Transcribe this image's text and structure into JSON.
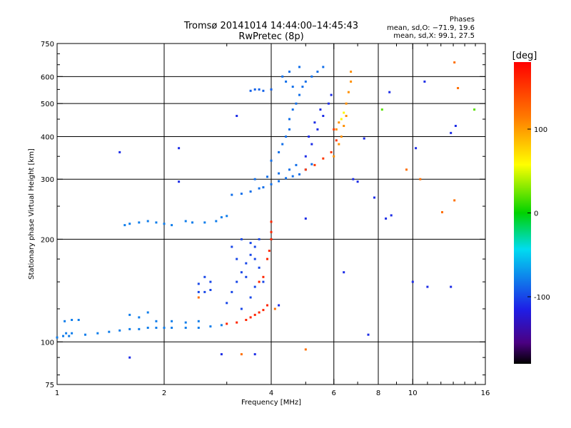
{
  "chart_data": {
    "type": "scatter",
    "title": "Tromsø 20141014 14:44:00–14:45:43",
    "subtitle": "RwPretec (8p)",
    "stats": {
      "header": "Phases",
      "line_o": "mean, sd,O: −71.9, 19.6",
      "line_x": "mean, sd,X:  99.1, 27.5"
    },
    "xlabel": "Frequency [MHz]",
    "ylabel": "Stationary phase Virtual Height [km]",
    "x_scale": "log",
    "y_scale": "log",
    "xlim": [
      1,
      16
    ],
    "ylim": [
      75,
      750
    ],
    "x_ticks": [
      1,
      2,
      4,
      6,
      8,
      10,
      16
    ],
    "x_tick_labels": [
      "1",
      "2",
      "4",
      "6",
      "8",
      "10",
      "16"
    ],
    "x_minor_ticks": [
      3,
      5,
      7,
      9,
      11,
      12,
      13,
      14,
      15
    ],
    "y_ticks": [
      75,
      100,
      200,
      300,
      400,
      500,
      600,
      750
    ],
    "y_tick_labels": [
      "75",
      "100",
      "200",
      "300",
      "400",
      "500",
      "600",
      "750"
    ],
    "y_minor_ticks": [
      80,
      90,
      125,
      150,
      175,
      250,
      350,
      450,
      550,
      650,
      700
    ],
    "x_gridlines": [
      2,
      4,
      6,
      8,
      10
    ],
    "y_gridlines": [
      100,
      200,
      300,
      400,
      500,
      600
    ],
    "grid": true,
    "colorbar": {
      "label": "[deg]",
      "range": [
        -180,
        180
      ],
      "ticks": [
        100,
        0,
        -100
      ],
      "tick_labels": [
        "100",
        "0",
        "-100"
      ],
      "position": "right"
    },
    "colors": {
      "background": "#ffffff",
      "grid": "#000000",
      "cyan": "#1eb4e6",
      "blue": "#1e46dc",
      "darkblue": "#1414a0",
      "orange": "#ff6a00",
      "yellow": "#d2dc14",
      "green": "#3cc83c"
    },
    "series": [
      {
        "phase": -80,
        "points": [
          [
            1.0,
            103
          ],
          [
            1.04,
            104
          ],
          [
            1.06,
            106
          ],
          [
            1.08,
            104
          ],
          [
            1.1,
            106
          ],
          [
            1.05,
            115
          ],
          [
            1.1,
            116
          ],
          [
            1.15,
            116
          ],
          [
            1.2,
            105
          ],
          [
            1.3,
            106
          ],
          [
            1.4,
            107
          ],
          [
            1.5,
            108
          ],
          [
            1.6,
            109
          ],
          [
            1.7,
            109
          ],
          [
            1.8,
            110
          ],
          [
            1.9,
            110
          ],
          [
            2.0,
            110
          ],
          [
            2.1,
            110
          ],
          [
            2.3,
            110
          ],
          [
            2.5,
            110
          ],
          [
            2.7,
            111
          ],
          [
            2.9,
            112
          ],
          [
            1.6,
            120
          ],
          [
            1.7,
            118
          ],
          [
            1.8,
            122
          ],
          [
            1.9,
            115
          ],
          [
            2.1,
            115
          ],
          [
            2.3,
            114
          ],
          [
            2.5,
            115
          ]
        ]
      },
      {
        "phase": -80,
        "points": [
          [
            1.55,
            220
          ],
          [
            1.6,
            222
          ],
          [
            1.7,
            224
          ],
          [
            1.8,
            226
          ],
          [
            1.9,
            224
          ],
          [
            2.0,
            222
          ],
          [
            2.1,
            220
          ],
          [
            2.3,
            226
          ],
          [
            2.4,
            224
          ],
          [
            2.6,
            224
          ],
          [
            2.8,
            226
          ],
          [
            2.9,
            232
          ],
          [
            3.0,
            234
          ]
        ]
      },
      {
        "phase": -85,
        "points": [
          [
            3.1,
            270
          ],
          [
            3.3,
            272
          ],
          [
            3.5,
            276
          ],
          [
            3.7,
            282
          ],
          [
            3.8,
            284
          ],
          [
            4.0,
            290
          ],
          [
            4.2,
            296
          ],
          [
            4.4,
            302
          ],
          [
            4.6,
            306
          ],
          [
            4.8,
            310
          ],
          [
            5.0,
            320
          ],
          [
            5.2,
            332
          ],
          [
            3.6,
            300
          ],
          [
            3.9,
            305
          ],
          [
            4.2,
            312
          ],
          [
            4.5,
            320
          ],
          [
            4.7,
            330
          ]
        ]
      },
      {
        "phase": -85,
        "points": [
          [
            4.0,
            340
          ],
          [
            4.2,
            360
          ],
          [
            4.3,
            380
          ],
          [
            4.4,
            400
          ],
          [
            4.5,
            420
          ],
          [
            4.5,
            450
          ],
          [
            4.6,
            480
          ],
          [
            4.7,
            500
          ],
          [
            4.8,
            530
          ],
          [
            4.9,
            560
          ],
          [
            5.0,
            580
          ],
          [
            5.2,
            600
          ],
          [
            5.4,
            620
          ],
          [
            5.6,
            640
          ],
          [
            4.6,
            560
          ],
          [
            4.4,
            580
          ],
          [
            4.3,
            600
          ],
          [
            4.5,
            620
          ],
          [
            4.8,
            640
          ]
        ]
      },
      {
        "phase": -90,
        "points": [
          [
            3.5,
            545
          ],
          [
            3.6,
            550
          ],
          [
            3.7,
            550
          ],
          [
            3.8,
            545
          ],
          [
            4.0,
            550
          ]
        ]
      },
      {
        "phase": -100,
        "points": [
          [
            3.0,
            130
          ],
          [
            3.1,
            140
          ],
          [
            3.2,
            150
          ],
          [
            3.3,
            160
          ],
          [
            3.4,
            170
          ],
          [
            3.5,
            180
          ],
          [
            3.6,
            190
          ],
          [
            3.7,
            200
          ],
          [
            3.3,
            200
          ],
          [
            3.5,
            195
          ],
          [
            3.2,
            175
          ],
          [
            3.4,
            155
          ],
          [
            3.6,
            145
          ],
          [
            3.8,
            150
          ],
          [
            3.5,
            135
          ],
          [
            3.3,
            125
          ],
          [
            3.7,
            165
          ],
          [
            3.1,
            190
          ],
          [
            3.6,
            175
          ]
        ]
      },
      {
        "phase": -100,
        "points": [
          [
            2.5,
            140
          ],
          [
            2.6,
            140
          ],
          [
            2.7,
            142
          ],
          [
            2.6,
            155
          ],
          [
            2.7,
            150
          ],
          [
            2.5,
            148
          ]
        ]
      },
      {
        "phase": -110,
        "points": [
          [
            5.0,
            350
          ],
          [
            5.2,
            380
          ],
          [
            5.4,
            420
          ],
          [
            5.6,
            460
          ],
          [
            5.8,
            500
          ],
          [
            5.9,
            530
          ],
          [
            5.1,
            400
          ],
          [
            5.3,
            440
          ],
          [
            5.5,
            480
          ]
        ]
      },
      {
        "phase": 160,
        "points": [
          [
            3.0,
            113
          ],
          [
            3.2,
            114
          ],
          [
            3.4,
            116
          ],
          [
            3.5,
            118
          ],
          [
            3.6,
            120
          ],
          [
            3.7,
            122
          ],
          [
            3.8,
            124
          ],
          [
            3.9,
            128
          ],
          [
            3.7,
            150
          ],
          [
            3.8,
            155
          ],
          [
            3.9,
            175
          ],
          [
            3.95,
            185
          ],
          [
            4.0,
            200
          ],
          [
            4.0,
            210
          ],
          [
            4.0,
            225
          ]
        ]
      },
      {
        "phase": 150,
        "points": [
          [
            5.0,
            320
          ],
          [
            5.3,
            330
          ],
          [
            5.6,
            345
          ],
          [
            5.9,
            360
          ],
          [
            6.1,
            390
          ],
          [
            6.0,
            420
          ]
        ]
      },
      {
        "phase": 105,
        "points": [
          [
            6.0,
            350
          ],
          [
            6.2,
            380
          ],
          [
            6.3,
            400
          ],
          [
            6.4,
            430
          ],
          [
            6.5,
            460
          ],
          [
            6.5,
            500
          ],
          [
            6.6,
            540
          ],
          [
            6.7,
            580
          ],
          [
            6.7,
            620
          ],
          [
            6.1,
            420
          ],
          [
            6.2,
            440
          ]
        ]
      },
      {
        "phase": 60,
        "points": [
          [
            6.3,
            450
          ],
          [
            6.4,
            470
          ]
        ]
      },
      {
        "phase": -110,
        "points": [
          [
            1.5,
            360
          ],
          [
            2.2,
            370
          ],
          [
            2.2,
            295
          ],
          [
            3.2,
            460
          ],
          [
            1.6,
            90
          ],
          [
            2.9,
            92
          ],
          [
            3.6,
            92
          ],
          [
            7.3,
            395
          ],
          [
            8.6,
            540
          ],
          [
            10.8,
            580
          ],
          [
            10.2,
            370
          ],
          [
            12.8,
            410
          ],
          [
            13.2,
            430
          ],
          [
            6.8,
            300
          ],
          [
            7.0,
            295
          ],
          [
            7.8,
            265
          ],
          [
            8.4,
            230
          ],
          [
            10.0,
            150
          ],
          [
            11.0,
            145
          ],
          [
            12.8,
            145
          ],
          [
            6.4,
            160
          ],
          [
            4.2,
            128
          ],
          [
            5.0,
            230
          ],
          [
            7.5,
            105
          ],
          [
            8.7,
            235
          ]
        ]
      },
      {
        "phase": 120,
        "points": [
          [
            4.1,
            125
          ],
          [
            2.5,
            135
          ],
          [
            3.3,
            92
          ],
          [
            5.0,
            95
          ],
          [
            9.6,
            320
          ],
          [
            10.5,
            300
          ],
          [
            12.1,
            240
          ],
          [
            13.1,
            260
          ],
          [
            13.1,
            660
          ],
          [
            13.4,
            555
          ]
        ]
      },
      {
        "phase": 20,
        "points": [
          [
            14.9,
            480
          ],
          [
            8.2,
            480
          ]
        ]
      }
    ]
  }
}
